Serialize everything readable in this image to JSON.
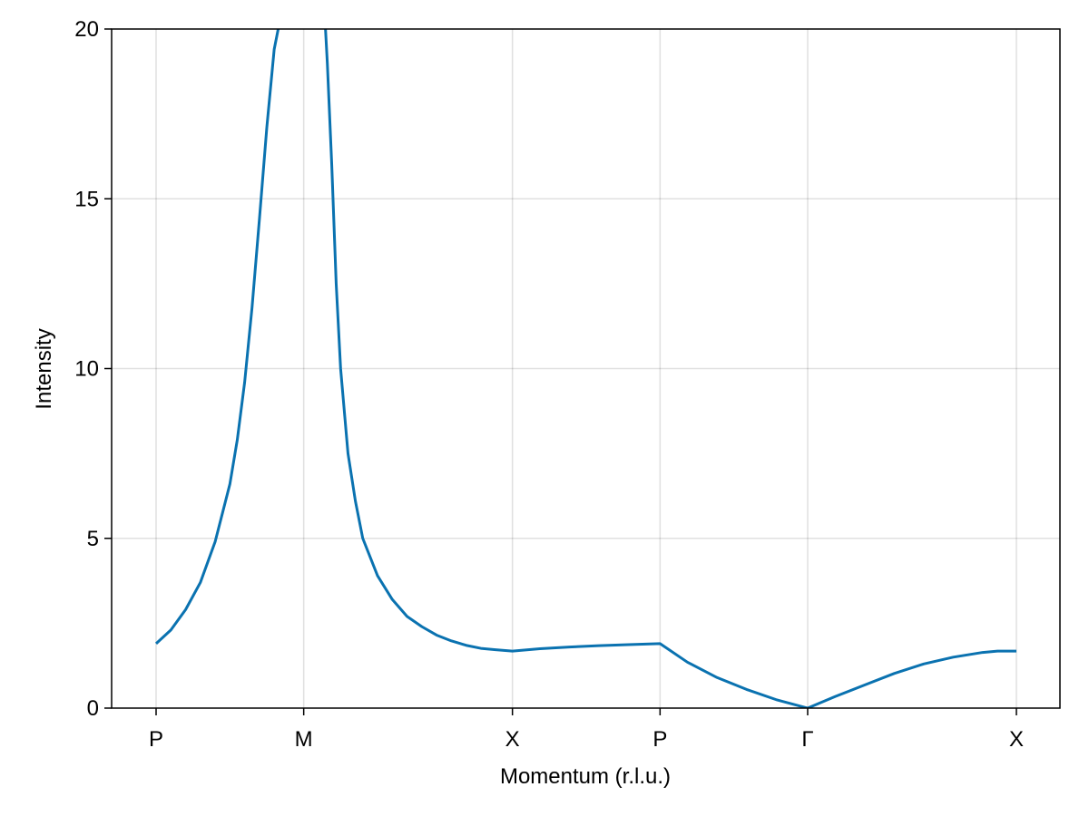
{
  "chart_data": {
    "type": "line",
    "title": "",
    "xlabel": "Momentum (r.l.u.)",
    "ylabel": "Intensity",
    "ylim": [
      0,
      20
    ],
    "yticks": [
      0,
      5,
      10,
      15,
      20
    ],
    "xticks": [
      {
        "label": "P",
        "pos": 0
      },
      {
        "label": "M",
        "pos": 1
      },
      {
        "label": "X",
        "pos": 2.414
      },
      {
        "label": "P",
        "pos": 3.414
      },
      {
        "label": "Γ",
        "pos": 4.414
      },
      {
        "label": "X",
        "pos": 5.828
      }
    ],
    "grid": true,
    "line_color": "#0a72b0",
    "series": [
      {
        "x": [
          0,
          0.1,
          0.2,
          0.3,
          0.4,
          0.5,
          0.55,
          0.6,
          0.65,
          0.7,
          0.75,
          0.8,
          0.85,
          0.88,
          0.9,
          1.12,
          1.14,
          1.16,
          1.19,
          1.22,
          1.25,
          1.3,
          1.35,
          1.4,
          1.5,
          1.6,
          1.7,
          1.8,
          1.9,
          2.0,
          2.1,
          2.2,
          2.3,
          2.414,
          2.6,
          2.8,
          3.0,
          3.2,
          3.414,
          3.6,
          3.8,
          4.0,
          4.2,
          4.414,
          4.6,
          4.8,
          5.0,
          5.2,
          5.4,
          5.6,
          5.7,
          5.828
        ],
        "y": [
          1.9,
          2.3,
          2.9,
          3.7,
          4.9,
          6.6,
          7.9,
          9.6,
          11.8,
          14.4,
          17.1,
          19.4,
          20.5,
          21.0,
          21.5,
          21.5,
          20.6,
          19.0,
          16.0,
          12.5,
          10.0,
          7.5,
          6.1,
          5.0,
          3.9,
          3.2,
          2.7,
          2.4,
          2.15,
          1.98,
          1.85,
          1.76,
          1.72,
          1.68,
          1.75,
          1.8,
          1.84,
          1.87,
          1.9,
          1.35,
          0.9,
          0.55,
          0.25,
          0.0,
          0.34,
          0.68,
          1.02,
          1.3,
          1.5,
          1.64,
          1.68,
          1.68
        ]
      }
    ]
  }
}
